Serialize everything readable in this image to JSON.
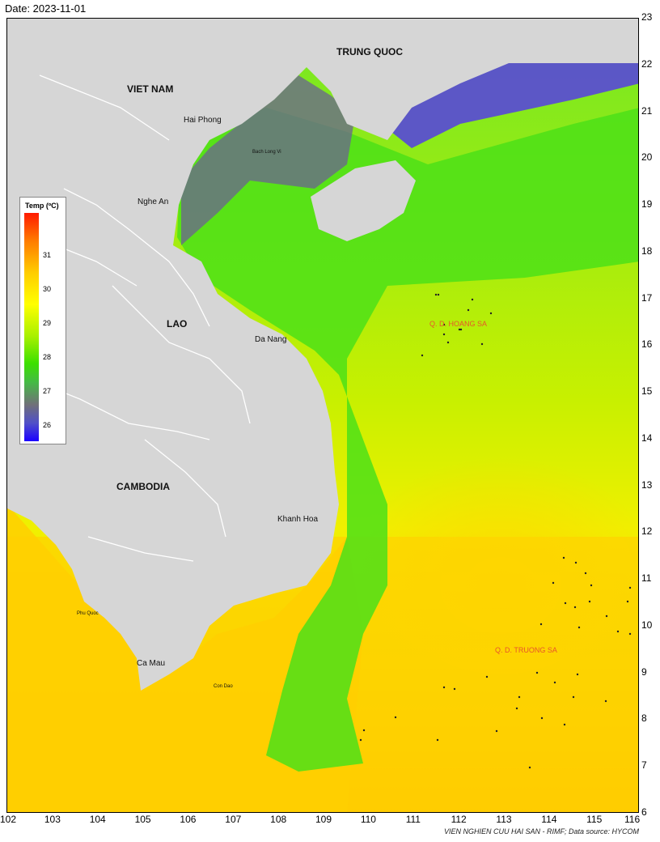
{
  "header": {
    "date": "Date: 2023-11-01"
  },
  "map": {
    "countries": {
      "trung_quoc": "TRUNG QUOC",
      "viet_nam": "VIET NAM",
      "lao": "LAO",
      "cambodia": "CAMBODIA"
    },
    "places": {
      "hai_phong": "Hai Phong",
      "bach_long_vi": "Bach Long Vi",
      "nghe_an": "Nghe An",
      "da_nang": "Da Nang",
      "khanh_hoa": "Khanh Hoa",
      "phu_quoc": "Phu Quoc",
      "ca_mau": "Ca Mau",
      "con_dao": "Con Dao"
    },
    "archipelagos": {
      "hoang_sa": "Q. D. HOANG SA",
      "truong_sa": "Q. D. TRUONG SA"
    },
    "colors": {
      "land": "#d6d6d6",
      "warm": "#ffd000",
      "mid": "#c8f000",
      "cool": "#3ce000",
      "cold": "#5a4fd0"
    }
  },
  "legend": {
    "title": "Temp (ºC)",
    "ticks": [
      "31",
      "30",
      "29",
      "28",
      "27",
      "26"
    ]
  },
  "axes": {
    "x": [
      "102",
      "103",
      "104",
      "105",
      "106",
      "107",
      "108",
      "109",
      "110",
      "111",
      "112",
      "113",
      "114",
      "115",
      "116"
    ],
    "y": [
      "6",
      "7",
      "8",
      "9",
      "10",
      "11",
      "12",
      "13",
      "14",
      "15",
      "16",
      "17",
      "18",
      "19",
      "20",
      "21",
      "22",
      "23"
    ]
  },
  "footer": {
    "credit": "VIEN NGHIEN CUU HAI SAN - RIMF; Data source: HYCOM"
  }
}
